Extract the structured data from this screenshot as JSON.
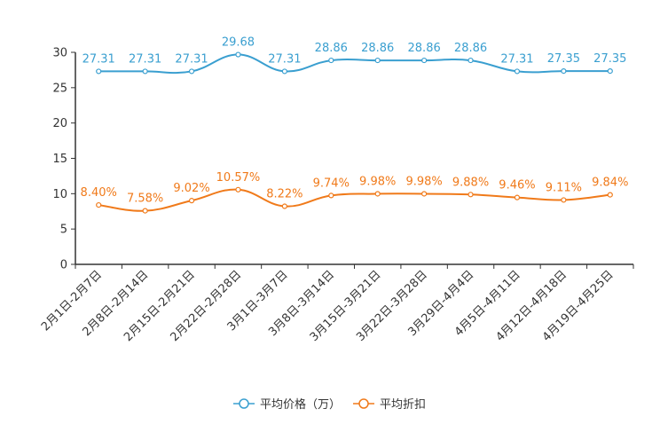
{
  "chart_data": {
    "type": "line",
    "title": "",
    "xlabel": "",
    "ylabel": "",
    "ylim": [
      0,
      30
    ],
    "yticks": [
      0,
      5,
      10,
      15,
      20,
      25,
      30
    ],
    "categories": [
      "2月1日-2月7日",
      "2月8日-2月14日",
      "2月15日-2月21日",
      "2月22日-2月28日",
      "3月1日-3月7日",
      "3月8日-3月14日",
      "3月15日-3月21日",
      "3月22日-3月28日",
      "3月29日-4月4日",
      "4月5日-4月11日",
      "4月12日-4月18日",
      "4月19日-4月25日"
    ],
    "series": [
      {
        "name": "平均价格（万）",
        "color": "#3a9fd0",
        "values": [
          27.31,
          27.31,
          27.31,
          29.68,
          27.31,
          28.86,
          28.86,
          28.86,
          28.86,
          27.31,
          27.35,
          27.35
        ],
        "labels": [
          "27.31",
          "27.31",
          "27.31",
          "29.68",
          "27.31",
          "28.86",
          "28.86",
          "28.86",
          "28.86",
          "27.31",
          "27.35",
          "27.35"
        ]
      },
      {
        "name": "平均折扣",
        "color": "#f07a1a",
        "values": [
          8.4,
          7.58,
          9.02,
          10.57,
          8.22,
          9.74,
          9.98,
          9.98,
          9.88,
          9.46,
          9.11,
          9.84
        ],
        "labels": [
          "8.40%",
          "7.58%",
          "9.02%",
          "10.57%",
          "8.22%",
          "9.74%",
          "9.98%",
          "9.98%",
          "9.88%",
          "9.46%",
          "9.11%",
          "9.84%"
        ]
      }
    ],
    "legend_position": "bottom-center"
  }
}
